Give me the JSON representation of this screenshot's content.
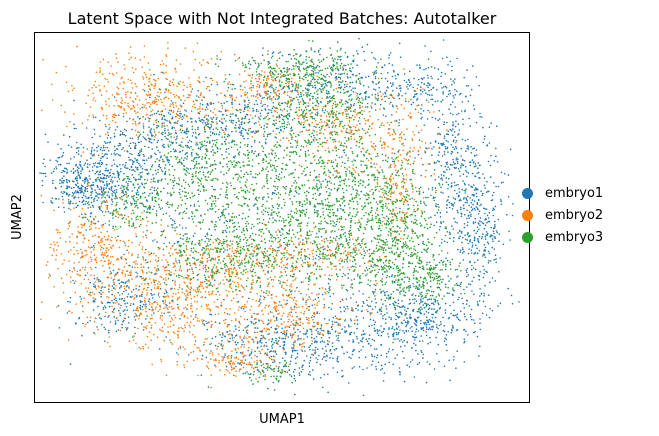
{
  "chart_data": {
    "type": "scatter",
    "title": "Latent Space with Not Integrated Batches: Autotalker",
    "xlabel": "UMAP1",
    "ylabel": "UMAP2",
    "grid": false,
    "xticks": [],
    "yticks": [],
    "legend_placement": "right",
    "series": [
      {
        "name": "embryo1",
        "color": "#1f77b4"
      },
      {
        "name": "embryo2",
        "color": "#ff7f0e"
      },
      {
        "name": "embryo3",
        "color": "#2ca02c"
      }
    ]
  }
}
